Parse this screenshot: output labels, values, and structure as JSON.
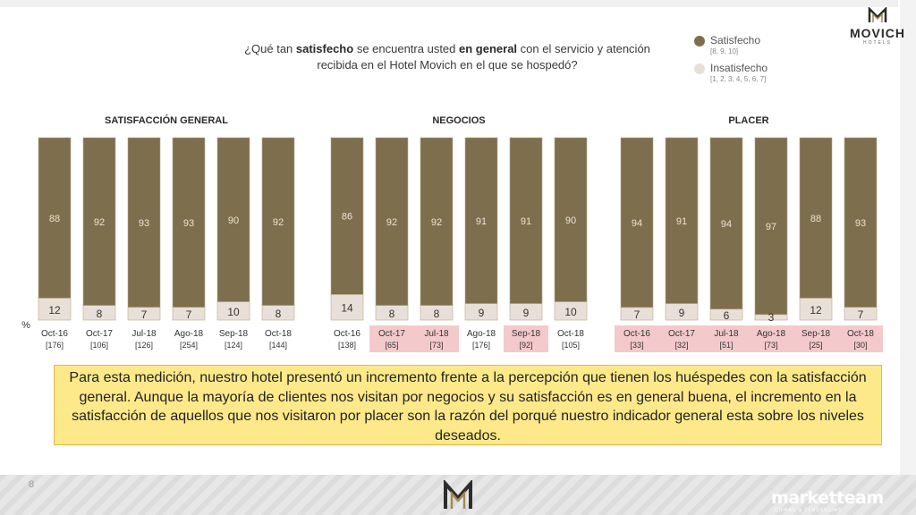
{
  "question": {
    "pre1": "¿Qué tan ",
    "bold1": "satisfecho",
    "mid1": " se encuentra usted ",
    "bold2": "en general",
    "rest": " con el servicio y atención recibida en el Hotel Movich en el que se hospedó?"
  },
  "legend": [
    {
      "label": "Satisfecho",
      "sub": "[8, 9, 10]",
      "color": "#7d6e4e"
    },
    {
      "label": "Insatisfecho",
      "sub": "[1, 2, 3, 4, 5, 6, 7]",
      "color": "#e8e0d8"
    }
  ],
  "logo": {
    "name": "MOVICH",
    "sub": "HOTELS"
  },
  "colors": {
    "satisfied": "#7d6e4e",
    "unsatisfied": "#e8e0d8",
    "highlight": "#f4c9cb",
    "bar_border": "#b9a98a"
  },
  "chart_data": {
    "type": "bar",
    "stacked": true,
    "unit_label": "%",
    "groups": [
      {
        "title": "SATISFACCIÓN GENERAL",
        "categories": [
          "Oct-16",
          "Oct-17",
          "Jul-18",
          "Ago-18",
          "Sep-18",
          "Oct-18"
        ],
        "bases": [
          "[176]",
          "[106]",
          "[126]",
          "[254]",
          "[124]",
          "[144]"
        ],
        "highlighted": [
          false,
          false,
          false,
          false,
          false,
          false
        ],
        "series": [
          {
            "name": "Satisfecho",
            "values": [
              88,
              92,
              93,
              93,
              90,
              92
            ]
          },
          {
            "name": "Insatisfecho",
            "values": [
              12,
              8,
              7,
              7,
              10,
              8
            ]
          }
        ]
      },
      {
        "title": "NEGOCIOS",
        "categories": [
          "Oct-16",
          "Oct-17",
          "Jul-18",
          "Ago-18",
          "Sep-18",
          "Oct-18"
        ],
        "bases": [
          "[138]",
          "[65]",
          "[73]",
          "[176]",
          "[92]",
          "[105]"
        ],
        "highlighted": [
          false,
          true,
          true,
          false,
          true,
          false
        ],
        "series": [
          {
            "name": "Satisfecho",
            "values": [
              86,
              92,
              92,
              91,
              91,
              90
            ]
          },
          {
            "name": "Insatisfecho",
            "values": [
              14,
              8,
              8,
              9,
              9,
              10
            ]
          }
        ]
      },
      {
        "title": "PLACER",
        "categories": [
          "Oct-16",
          "Oct-17",
          "Jul-18",
          "Ago-18",
          "Sep-18",
          "Oct-18"
        ],
        "bases": [
          "[33]",
          "[32]",
          "[51]",
          "[73]",
          "[25]",
          "[30]"
        ],
        "highlighted": [
          true,
          true,
          true,
          true,
          true,
          true
        ],
        "series": [
          {
            "name": "Satisfecho",
            "values": [
              94,
              91,
              94,
              97,
              88,
              93
            ]
          },
          {
            "name": "Insatisfecho",
            "values": [
              7,
              9,
              6,
              3,
              12,
              7
            ]
          }
        ]
      }
    ]
  },
  "note": "Para esta medición, nuestro hotel presentó un incremento frente a la percepción que tienen los huéspedes con la satisfacción general. Aunque la mayoría de clientes nos visitan por negocios y su satisfacción es en general buena, el incremento en la satisfacción de aquellos que nos visitaron por placer son la razón del porqué nuestro indicador general esta sobre los niveles deseados.",
  "footer": {
    "page": "8",
    "brand": "marketteam",
    "brand_sub": "CIFRAS & TENDENCIAS"
  }
}
